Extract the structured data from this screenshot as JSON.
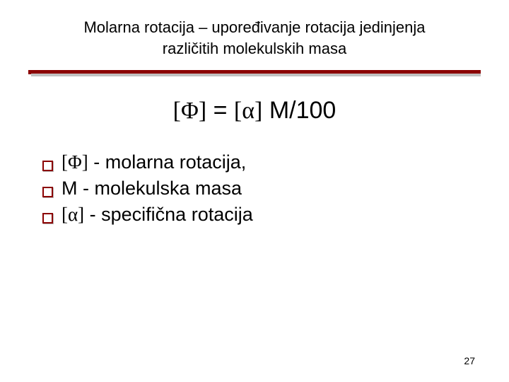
{
  "title_line1": "Molarna rotacija – upoređivanje rotacija jedinjenja",
  "title_line2": "različitih molekulskih masa",
  "formula": {
    "lhs": "[Φ]",
    "mid": " = ",
    "rhs_sym": "[α]",
    "rhs_tail": " M/100"
  },
  "items": [
    {
      "sym": "[Φ]",
      "text": " - molarna rotacija,"
    },
    {
      "sym": "M",
      "text": " - molekulska masa"
    },
    {
      "sym": "[α]",
      "text": " - specifična rotacija"
    }
  ],
  "page_number": "27",
  "colors": {
    "accent": "#8b0000",
    "text": "#000000",
    "background": "#ffffff"
  }
}
